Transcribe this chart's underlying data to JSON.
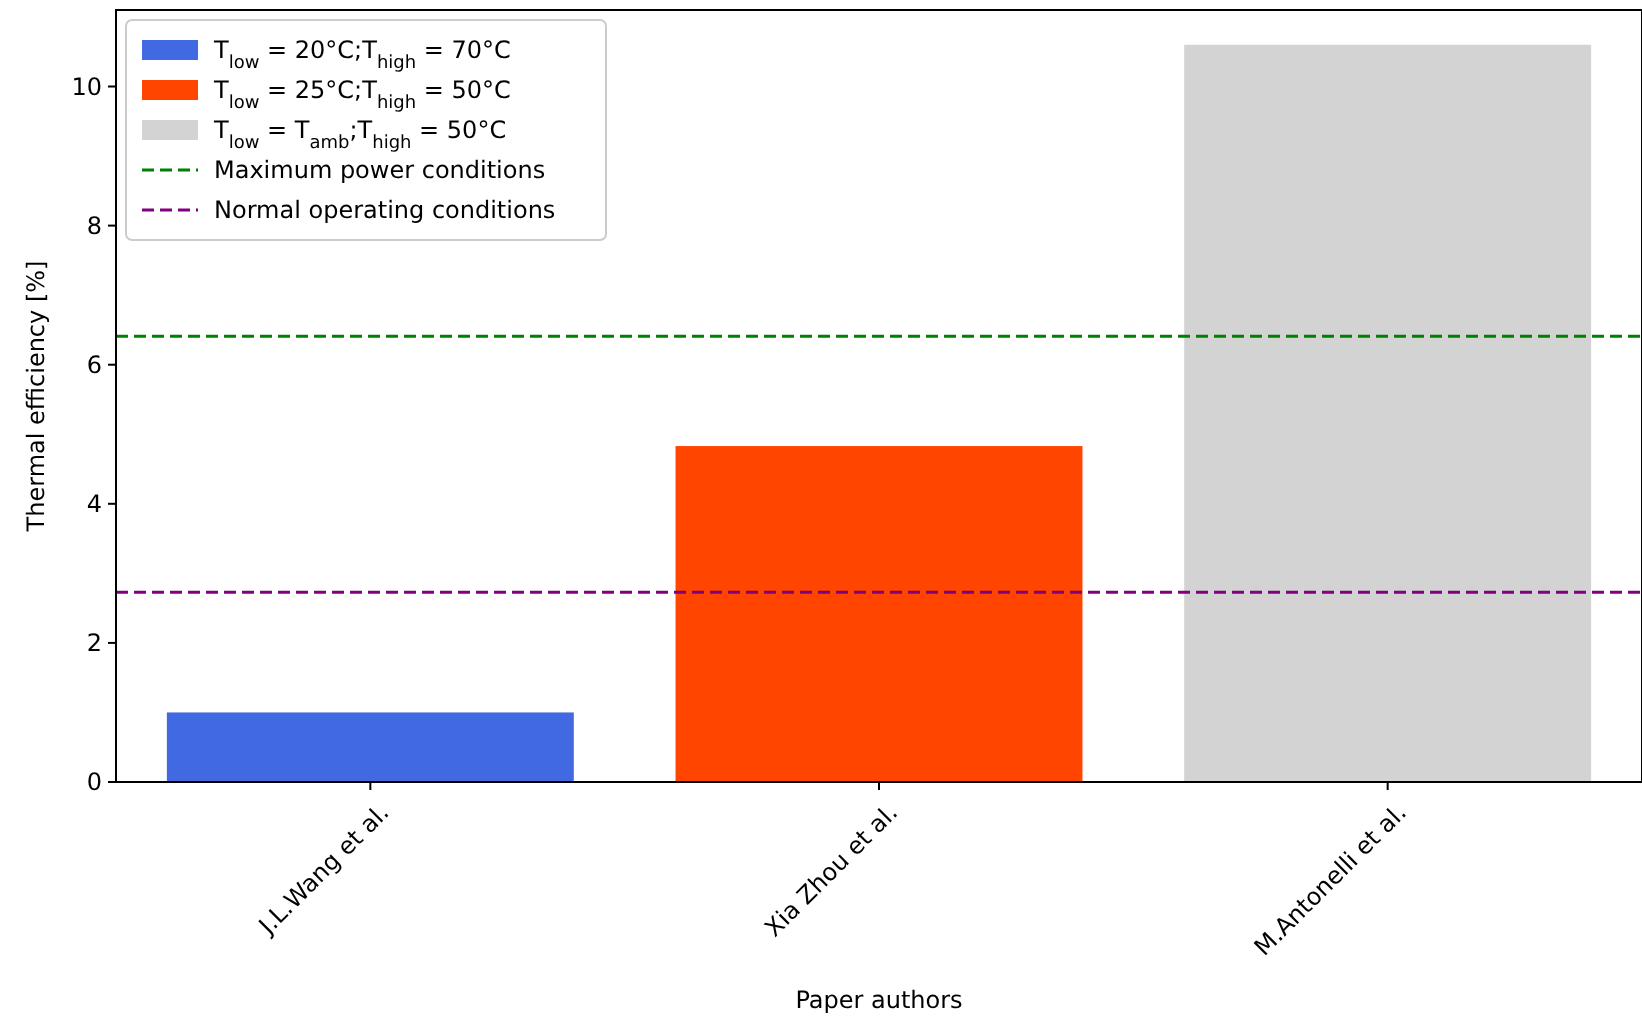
{
  "chart_data": {
    "type": "bar",
    "xlabel": "Paper authors",
    "ylabel": "Thermal efficiency [%]",
    "categories": [
      "J.L.Wang et al.",
      "Xia Zhou et al.",
      "M.Antonelli et al."
    ],
    "series": [
      {
        "name": "T$_{low}$ = 20°C;T$_{high}$ = 70°C",
        "color": "#4169e1",
        "values": [
          1.0,
          null,
          null
        ]
      },
      {
        "name": "T$_{low}$ = 25°C;T$_{high}$ = 50°C",
        "color": "#ff4500",
        "values": [
          null,
          4.83,
          null
        ]
      },
      {
        "name": "T$_{low}$ = T$_{amb}$;T$_{high}$ = 50°C",
        "color": "#d3d3d3",
        "values": [
          null,
          null,
          10.6
        ]
      }
    ],
    "ref_lines": [
      {
        "axis": "y",
        "value": 6.41,
        "label": "Maximum power conditions",
        "color": "#008000",
        "line_style": "dashed"
      },
      {
        "axis": "y",
        "value": 2.73,
        "label": "Normal operating conditions",
        "color": "#800080",
        "line_style": "dashed"
      }
    ],
    "ylim": [
      0,
      11.1
    ],
    "yticks": [
      0,
      2,
      4,
      6,
      8,
      10
    ],
    "grid": false,
    "legend": "top left"
  }
}
